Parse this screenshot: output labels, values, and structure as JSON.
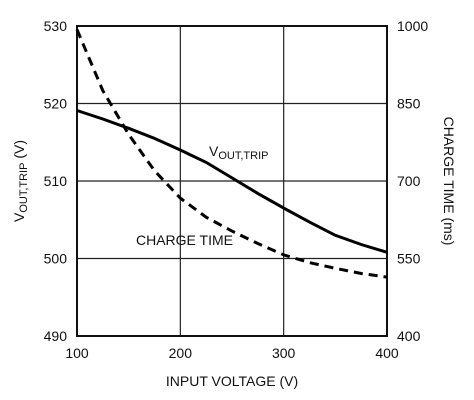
{
  "chart_data": {
    "type": "line",
    "xlabel": "INPUT VOLTAGE (V)",
    "ylabel_left": "VOUT,TRIP (V)",
    "ylabel_right": "CHARGE TIME (ms)",
    "xlim": [
      100,
      400
    ],
    "ylim_left": [
      490,
      530
    ],
    "ylim_right": [
      400,
      1000
    ],
    "x_ticks": [
      "100",
      "200",
      "300",
      "400"
    ],
    "y_ticks_left": [
      "490",
      "500",
      "510",
      "520",
      "530"
    ],
    "y_ticks_right": [
      "400",
      "550",
      "700",
      "850",
      "1000"
    ],
    "grid": true,
    "series": [
      {
        "name": "VOUT,TRIP",
        "axis": "left",
        "style": "solid",
        "color": "#000000",
        "x": [
          100,
          125,
          150,
          175,
          200,
          225,
          250,
          275,
          300,
          325,
          350,
          375,
          400
        ],
        "y": [
          519.1,
          518.0,
          516.8,
          515.5,
          514.0,
          512.4,
          510.4,
          508.4,
          506.5,
          504.7,
          503.0,
          501.8,
          500.8
        ]
      },
      {
        "name": "CHARGE TIME",
        "axis": "right",
        "style": "dashed",
        "color": "#000000",
        "x": [
          100,
          125,
          150,
          175,
          200,
          225,
          250,
          275,
          300,
          325,
          350,
          375,
          400
        ],
        "y": [
          993,
          875,
          790,
          720,
          667,
          630,
          603,
          579,
          557,
          542,
          531,
          521,
          514
        ]
      }
    ],
    "annotations": [
      {
        "text_main": "V",
        "text_sub": "OUT,TRIP",
        "series": "VOUT,TRIP"
      },
      {
        "text": "CHARGE TIME",
        "series": "CHARGE TIME"
      }
    ]
  }
}
